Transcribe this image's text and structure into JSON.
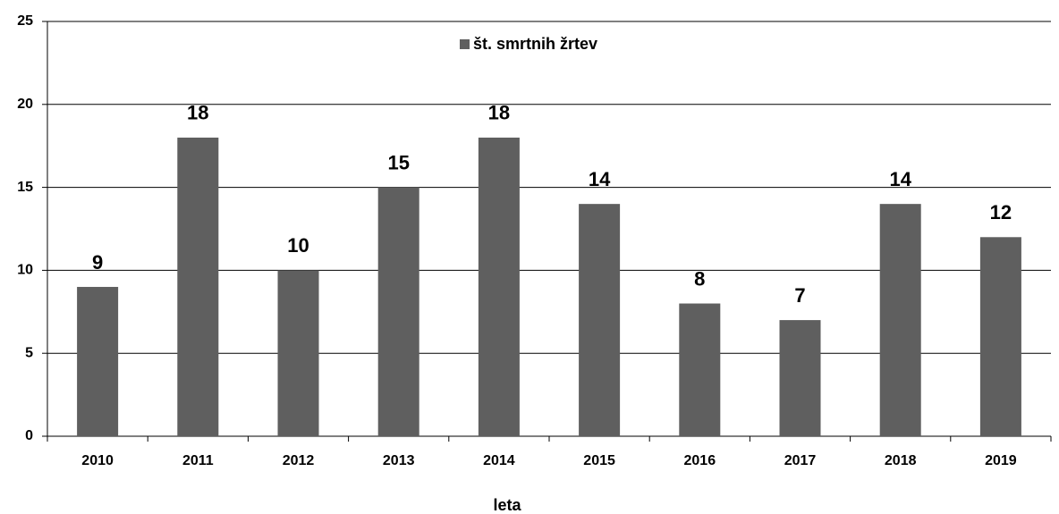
{
  "chart_data": {
    "type": "bar",
    "categories": [
      "2010",
      "2011",
      "2012",
      "2013",
      "2014",
      "2015",
      "2016",
      "2017",
      "2018",
      "2019"
    ],
    "series": [
      {
        "name": "št. smrtnih žrtev",
        "color": "#5f5f5f",
        "values": [
          9,
          18,
          10,
          15,
          18,
          14,
          8,
          7,
          14,
          12
        ]
      }
    ],
    "x_label": "leta",
    "ylim": [
      0,
      25
    ],
    "yticks": [
      0,
      5,
      10,
      15,
      20,
      25
    ],
    "grid": true,
    "legend": "top"
  }
}
